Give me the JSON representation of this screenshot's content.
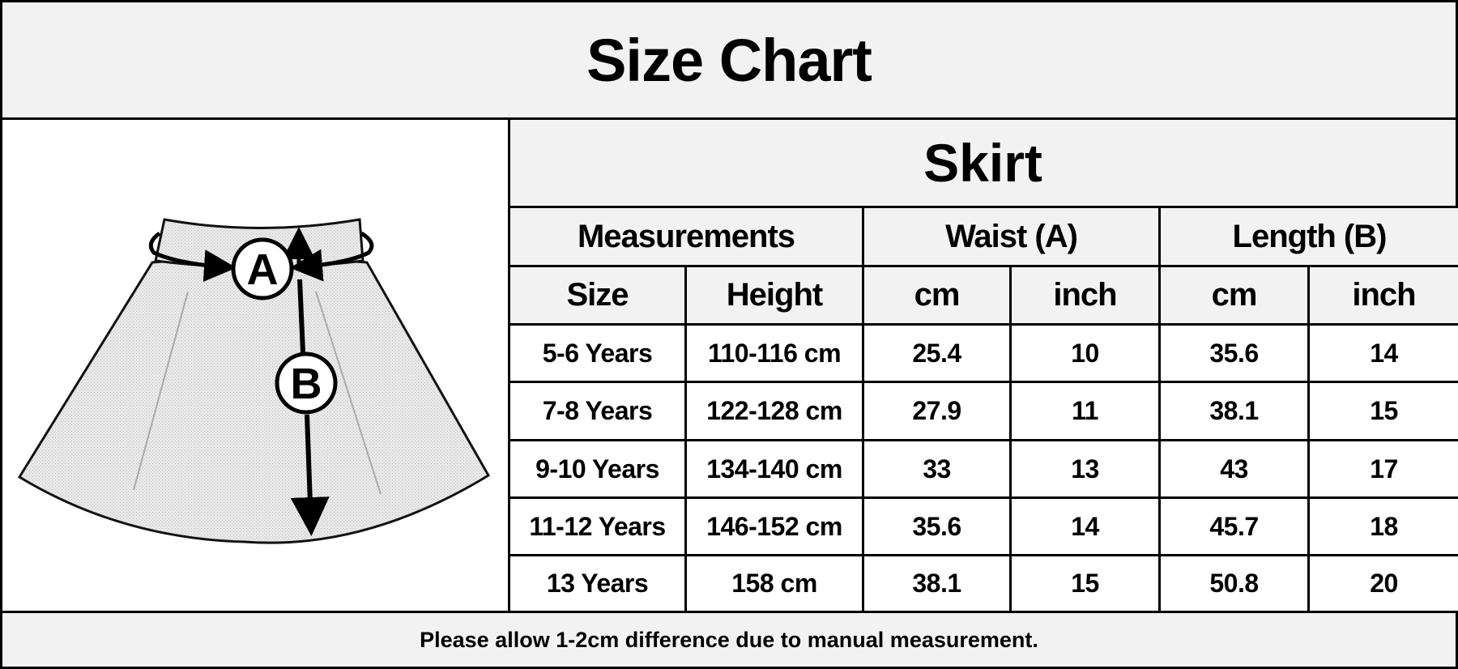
{
  "title": "Size Chart",
  "product": "Skirt",
  "diagram": {
    "label_a": "A",
    "label_b": "B"
  },
  "groups": [
    "Measurements",
    "Waist (A)",
    "Length (B)"
  ],
  "columns": [
    "Size",
    "Height",
    "cm",
    "inch",
    "cm",
    "inch"
  ],
  "rows": [
    [
      "5-6 Years",
      "110-116 cm",
      "25.4",
      "10",
      "35.6",
      "14"
    ],
    [
      "7-8 Years",
      "122-128 cm",
      "27.9",
      "11",
      "38.1",
      "15"
    ],
    [
      "9-10 Years",
      "134-140 cm",
      "33",
      "13",
      "43",
      "17"
    ],
    [
      "11-12 Years",
      "146-152 cm",
      "35.6",
      "14",
      "45.7",
      "18"
    ],
    [
      "13 Years",
      "158 cm",
      "38.1",
      "15",
      "50.8",
      "20"
    ]
  ],
  "footer": "Please allow 1-2cm difference due to manual measurement."
}
